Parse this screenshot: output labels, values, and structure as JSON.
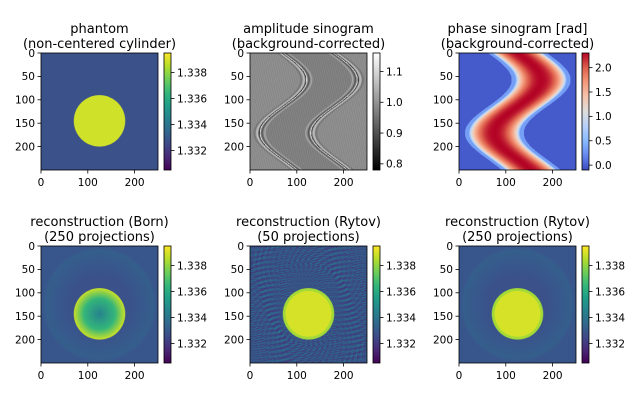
{
  "colors": {
    "viridis": [
      "#440154",
      "#482878",
      "#3e4989",
      "#31688e",
      "#26828e",
      "#1f9e89",
      "#35b779",
      "#6ece58",
      "#b5de2b",
      "#fde725"
    ],
    "gray": [
      "#000000",
      "#ffffff"
    ],
    "coolwarm": [
      "#3b4cc0",
      "#6688ee",
      "#88bbff",
      "#b8d0f9",
      "#dddddd",
      "#f5c4ad",
      "#f49a7b",
      "#de604d",
      "#b40426"
    ]
  },
  "chart_data": [
    {
      "type": "heatmap",
      "title_lines": [
        "phantom",
        "(non-centered cylinder)"
      ],
      "image": "phantom",
      "colormap": "viridis",
      "xticks": [
        0,
        100,
        200
      ],
      "yticks": [
        0,
        50,
        100,
        150,
        200
      ],
      "xlim": [
        0,
        250
      ],
      "ylim": [
        250,
        0
      ],
      "colorbar": {
        "range": [
          1.3305,
          1.3395
        ],
        "ticks": [
          1.332,
          1.334,
          1.336,
          1.338
        ]
      }
    },
    {
      "type": "heatmap",
      "title_lines": [
        "amplitude sinogram",
        "(background-corrected)"
      ],
      "image": "amplitude_sinogram",
      "colormap": "gray",
      "xticks": [
        0,
        100,
        200
      ],
      "yticks": [
        0,
        50,
        100,
        150,
        200
      ],
      "xlim": [
        0,
        250
      ],
      "ylim": [
        250,
        0
      ],
      "colorbar": {
        "range": [
          0.78,
          1.16
        ],
        "ticks": [
          0.8,
          0.9,
          1.0,
          1.1
        ]
      }
    },
    {
      "type": "heatmap",
      "title_lines": [
        "phase sinogram [rad]",
        "(background-corrected)"
      ],
      "image": "phase_sinogram",
      "colormap": "coolwarm",
      "xticks": [
        0,
        100,
        200
      ],
      "yticks": [
        0,
        50,
        100,
        150,
        200
      ],
      "xlim": [
        0,
        250
      ],
      "ylim": [
        250,
        0
      ],
      "colorbar": {
        "range": [
          -0.1,
          2.3
        ],
        "ticks": [
          0.0,
          0.5,
          1.0,
          1.5,
          2.0
        ]
      }
    },
    {
      "type": "heatmap",
      "title_lines": [
        "reconstruction (Born)",
        "(250 projections)"
      ],
      "image": "reconstruction_born",
      "colormap": "viridis",
      "xticks": [
        0,
        100,
        200
      ],
      "yticks": [
        0,
        50,
        100,
        150,
        200
      ],
      "xlim": [
        0,
        250
      ],
      "ylim": [
        250,
        0
      ],
      "colorbar": {
        "range": [
          1.3305,
          1.3395
        ],
        "ticks": [
          1.332,
          1.334,
          1.336,
          1.338
        ]
      }
    },
    {
      "type": "heatmap",
      "title_lines": [
        "reconstruction (Rytov)",
        "(50 projections)"
      ],
      "image": "reconstruction_rytov_50",
      "colormap": "viridis",
      "xticks": [
        0,
        100,
        200
      ],
      "yticks": [
        0,
        50,
        100,
        150,
        200
      ],
      "xlim": [
        0,
        250
      ],
      "ylim": [
        250,
        0
      ],
      "colorbar": {
        "range": [
          1.3305,
          1.3395
        ],
        "ticks": [
          1.332,
          1.334,
          1.336,
          1.338
        ]
      }
    },
    {
      "type": "heatmap",
      "title_lines": [
        "reconstruction (Rytov)",
        "(250 projections)"
      ],
      "image": "reconstruction_rytov_250",
      "colormap": "viridis",
      "xticks": [
        0,
        100,
        200
      ],
      "yticks": [
        0,
        50,
        100,
        150,
        200
      ],
      "xlim": [
        0,
        250
      ],
      "ylim": [
        250,
        0
      ],
      "colorbar": {
        "range": [
          1.3305,
          1.3395
        ],
        "ticks": [
          1.332,
          1.334,
          1.336,
          1.338
        ]
      }
    }
  ]
}
